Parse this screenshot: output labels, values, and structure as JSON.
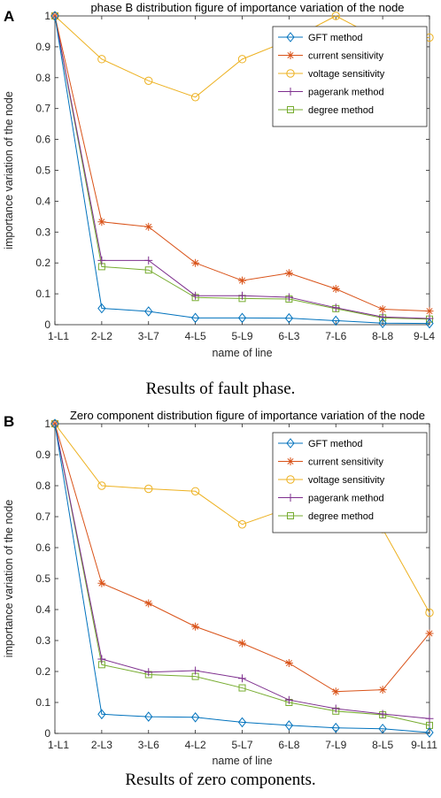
{
  "chart_data": [
    {
      "type": "line",
      "panel_label": "A",
      "title": "phase B distribution figure of importance variation of the node",
      "xlabel": "name of line",
      "ylabel": "importance variation of the node",
      "caption": "Results of fault phase.",
      "categories": [
        "1-L1",
        "2-L2",
        "3-L7",
        "4-L5",
        "5-L9",
        "6-L3",
        "7-L6",
        "8-L8",
        "9-L4"
      ],
      "ylim": [
        0,
        1
      ],
      "yticks": [
        "0",
        "0.1",
        "0.2",
        "0.3",
        "0.4",
        "0.5",
        "0.6",
        "0.7",
        "0.8",
        "0.9",
        "1"
      ],
      "legend_position": "top-right",
      "grid": false,
      "series": [
        {
          "name": "GFT method",
          "color": "#0072BD",
          "marker": "diamond",
          "values": [
            1,
            0.053,
            0.043,
            0.022,
            0.022,
            0.021,
            0.013,
            0.005,
            0.004
          ]
        },
        {
          "name": "current sensitivity",
          "color": "#D95319",
          "marker": "asterisk",
          "values": [
            1,
            0.333,
            0.317,
            0.2,
            0.143,
            0.167,
            0.116,
            0.05,
            0.044
          ]
        },
        {
          "name": "voltage sensitivity",
          "color": "#EDB120",
          "marker": "circle",
          "values": [
            1,
            0.86,
            0.79,
            0.737,
            0.86,
            0.921,
            1,
            0.921,
            0.93
          ]
        },
        {
          "name": "pagerank method",
          "color": "#7E2F8E",
          "marker": "plus",
          "values": [
            1,
            0.208,
            0.208,
            0.094,
            0.094,
            0.089,
            0.055,
            0.025,
            0.02
          ]
        },
        {
          "name": "degree method",
          "color": "#77AC30",
          "marker": "square",
          "values": [
            1,
            0.188,
            0.177,
            0.088,
            0.085,
            0.083,
            0.052,
            0.022,
            0.018
          ]
        }
      ]
    },
    {
      "type": "line",
      "panel_label": "B",
      "title": "Zero component distribution figure of importance variation of the node",
      "xlabel": "name of line",
      "ylabel": "importance variation of the node",
      "caption": "Results of zero components.",
      "categories": [
        "1-L1",
        "2-L3",
        "3-L6",
        "4-L2",
        "5-L7",
        "6-L8",
        "7-L9",
        "8-L5",
        "9-L11"
      ],
      "ylim": [
        0,
        1
      ],
      "yticks": [
        "0",
        "0.1",
        "0.2",
        "0.3",
        "0.4",
        "0.5",
        "0.6",
        "0.7",
        "0.8",
        "0.9",
        "1"
      ],
      "legend_position": "top-right",
      "grid": false,
      "series": [
        {
          "name": "GFT method",
          "color": "#0072BD",
          "marker": "diamond",
          "values": [
            1,
            0.062,
            0.054,
            0.052,
            0.036,
            0.026,
            0.018,
            0.015,
            0.003
          ]
        },
        {
          "name": "current sensitivity",
          "color": "#D95319",
          "marker": "asterisk",
          "values": [
            1,
            0.485,
            0.42,
            0.345,
            0.291,
            0.227,
            0.135,
            0.141,
            0.323
          ]
        },
        {
          "name": "voltage sensitivity",
          "color": "#EDB120",
          "marker": "circle",
          "values": [
            1,
            0.8,
            0.79,
            0.782,
            0.675,
            0.728,
            0.76,
            0.66,
            0.39
          ]
        },
        {
          "name": "pagerank method",
          "color": "#7E2F8E",
          "marker": "plus",
          "values": [
            1,
            0.24,
            0.198,
            0.203,
            0.178,
            0.108,
            0.08,
            0.063,
            0.048
          ]
        },
        {
          "name": "degree method",
          "color": "#77AC30",
          "marker": "square",
          "values": [
            1,
            0.222,
            0.19,
            0.184,
            0.147,
            0.1,
            0.072,
            0.06,
            0.026
          ]
        }
      ]
    }
  ]
}
